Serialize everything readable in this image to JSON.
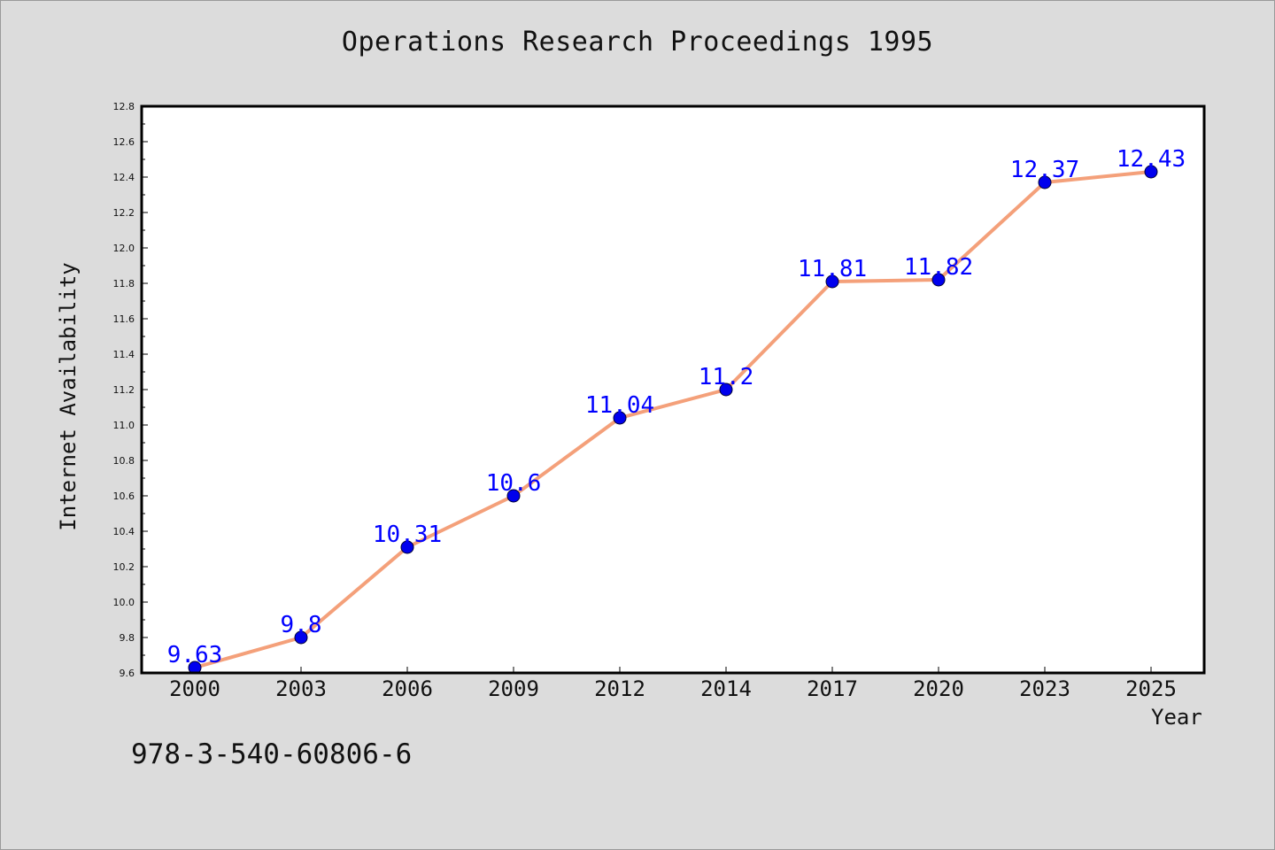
{
  "chart_data": {
    "type": "line",
    "title": "Operations Research Proceedings 1995",
    "xlabel": "Year",
    "ylabel": "Internet Availability",
    "categories": [
      "2000",
      "2003",
      "2006",
      "2009",
      "2012",
      "2014",
      "2017",
      "2020",
      "2023",
      "2025"
    ],
    "series": [
      {
        "values": [
          9.63,
          9.8,
          10.31,
          10.6,
          11.04,
          11.2,
          11.81,
          11.82,
          12.37,
          12.43
        ],
        "line_color": "#f4a07a",
        "marker_color": "#0000ee",
        "label_color": "#0000ff"
      }
    ],
    "data_labels": [
      "9.63",
      "9.8",
      "10.31",
      "10.6",
      "11.04",
      "11.2",
      "11.81",
      "11.82",
      "12.37",
      "12.43"
    ],
    "ylim": [
      9.6,
      12.8
    ],
    "yticks": [
      "9.6",
      "9.8",
      "10.0",
      "10.2",
      "10.4",
      "10.6",
      "10.8",
      "11.0",
      "11.2",
      "11.4",
      "11.6",
      "11.8",
      "12.0",
      "12.2",
      "12.4",
      "12.6",
      "12.8"
    ],
    "grid": false,
    "legend": "none"
  },
  "footer": {
    "isbn": "978-3-540-60806-6"
  }
}
